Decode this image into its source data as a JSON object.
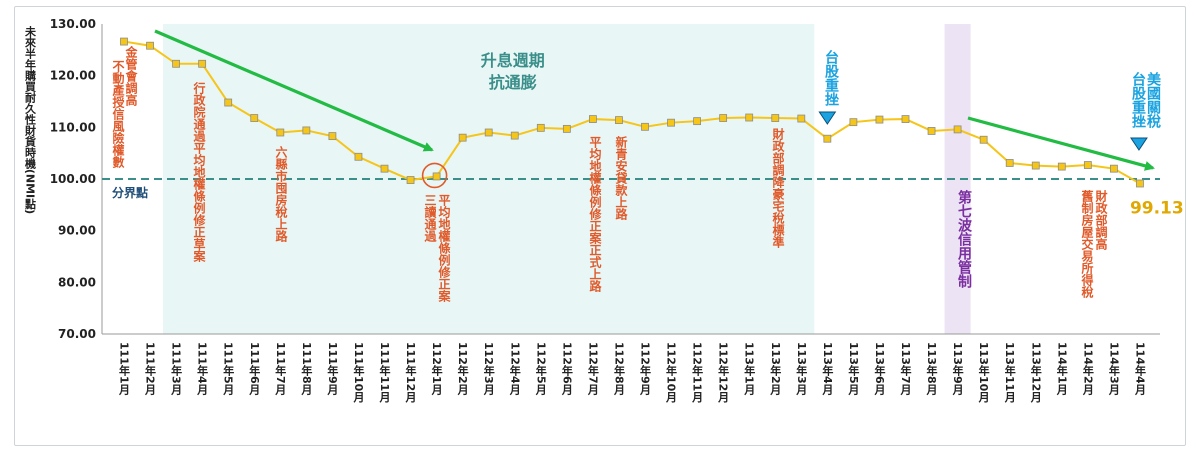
{
  "chart_data": {
    "type": "line",
    "ylabel": "未來半年購買耐久性財貨時機(NMI點)",
    "ylim": [
      70,
      130
    ],
    "yticks": [
      "130.00",
      "120.00",
      "110.00",
      "100.00",
      "90.00",
      "80.00",
      "70.00"
    ],
    "categories": [
      "111年1月",
      "111年2月",
      "111年3月",
      "111年4月",
      "111年5月",
      "111年6月",
      "111年7月",
      "111年8月",
      "111年9月",
      "111年10月",
      "111年11月",
      "111年12月",
      "112年1月",
      "112年2月",
      "112年3月",
      "112年4月",
      "112年5月",
      "112年6月",
      "112年7月",
      "112年8月",
      "112年9月",
      "112年10月",
      "112年11月",
      "112年12月",
      "113年1月",
      "113年2月",
      "113年3月",
      "113年4月",
      "113年5月",
      "113年6月",
      "113年7月",
      "113年8月",
      "113年9月",
      "113年10月",
      "113年11月",
      "113年12月",
      "114年1月",
      "114年2月",
      "114年3月",
      "114年4月"
    ],
    "series": [
      {
        "color": "#f5c518",
        "values": [
          126.6,
          125.8,
          122.3,
          122.3,
          114.8,
          111.8,
          109.0,
          109.4,
          108.3,
          104.3,
          102.0,
          99.8,
          100.5,
          108.0,
          109.0,
          108.4,
          109.9,
          109.7,
          111.6,
          111.4,
          110.1,
          110.9,
          111.2,
          111.8,
          111.9,
          111.8,
          111.7,
          107.8,
          111.0,
          111.5,
          111.6,
          109.3,
          109.6,
          107.6,
          103.1,
          102.6,
          102.4,
          102.7,
          102.0,
          99.13
        ]
      }
    ],
    "reference_line": {
      "value": 100,
      "label": "分界點",
      "color": "#3a8f8a"
    },
    "shaded_regions": [
      {
        "start": "111年3月",
        "end": "113年3月",
        "label_lines": [
          "升息週期",
          "抗通膨"
        ],
        "color": "#e9f6f6"
      },
      {
        "start": "113年9月",
        "end": "113年9月",
        "color": "#ece3f4"
      }
    ],
    "last_value_label": "99.13",
    "annotations": [
      {
        "at": "111年1月",
        "text": "不動產授信風險權數",
        "color": "#e05a2a"
      },
      {
        "at": "111年2月",
        "text": "金管會調高",
        "color": "#e05a2a"
      },
      {
        "at": "111年3月",
        "text": "行政院通過平均地權條例修正草案",
        "color": "#e05a2a"
      },
      {
        "at": "111年7月",
        "text": "六縣市囤房稅上路",
        "color": "#e05a2a"
      },
      {
        "at": "112年1月",
        "text": "三讀通過",
        "color": "#e05a2a"
      },
      {
        "at": "112年1月",
        "text": "平均地權條例修正案",
        "color": "#e05a2a"
      },
      {
        "at": "112年7月",
        "text": "平均地權條例修正案正式上路",
        "color": "#e05a2a"
      },
      {
        "at": "112年8月",
        "text": "新青安貸款上路",
        "color": "#e05a2a"
      },
      {
        "at": "113年2月",
        "text": "財政部調降豪宅稅標準",
        "color": "#e05a2a"
      },
      {
        "at": "113年4月",
        "text": "台股重挫",
        "color": "#1aa3e0"
      },
      {
        "at": "113年9月",
        "text": "第七波信用管制",
        "color": "#7a2ea0"
      },
      {
        "at": "114年2月",
        "text": "舊制房屋交易所得稅",
        "color": "#e05a2a"
      },
      {
        "at": "114年2月",
        "text": "財政部調高",
        "color": "#e05a2a"
      },
      {
        "at": "114年4月",
        "text": "台股重挫",
        "color": "#1aa3e0"
      },
      {
        "at": "114年4月",
        "text": "美國關稅",
        "color": "#1aa3e0"
      }
    ],
    "trend_arrows": [
      {
        "from": "111年2月",
        "to": "112年1月",
        "color": "#22bb44"
      },
      {
        "from": "113年9月",
        "to": "114年4月",
        "color": "#22bb44"
      }
    ],
    "grid": false,
    "legend": "none"
  }
}
